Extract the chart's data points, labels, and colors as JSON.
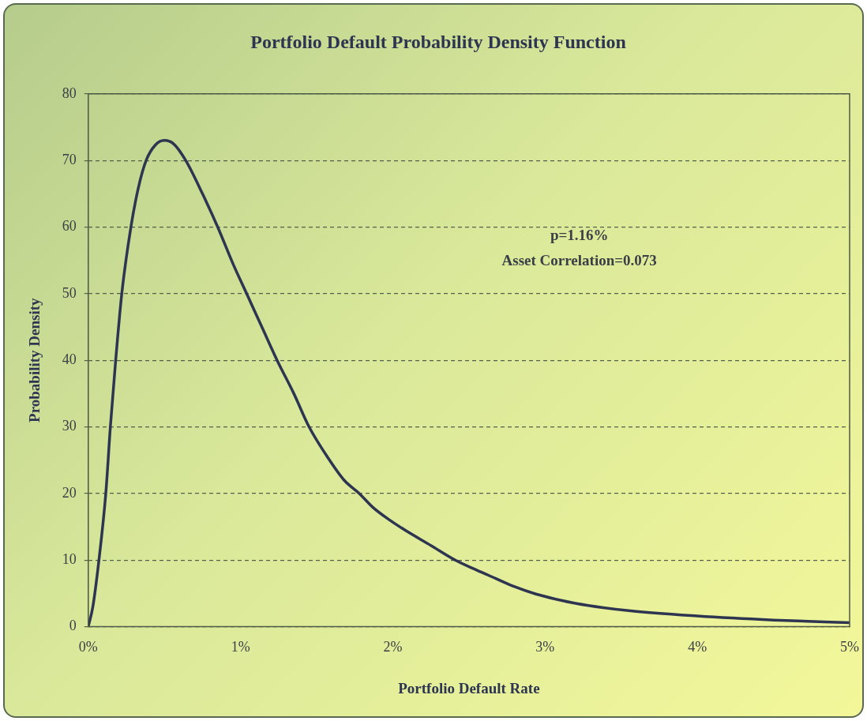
{
  "chart_data": {
    "type": "line",
    "title": "Portfolio Default Probability Density Function",
    "xlabel": "Portfolio Default Rate",
    "ylabel": "Probability Density",
    "annotations": [
      "p=1.16%",
      "Asset Correlation=0.073"
    ],
    "x": [
      0,
      0.03,
      0.07,
      0.115,
      0.145,
      0.18,
      0.22,
      0.28,
      0.33,
      0.38,
      0.44,
      0.5,
      0.56,
      0.64,
      0.75,
      0.85,
      0.95,
      1.04,
      1.14,
      1.24,
      1.35,
      1.45,
      1.57,
      1.68,
      1.78,
      1.87,
      1.98,
      2.08,
      2.25,
      2.41,
      2.55,
      2.68,
      2.8,
      2.94,
      3.2,
      3.55,
      4,
      4.5,
      5
    ],
    "series": [
      {
        "color": "#2e3550",
        "values": [
          0,
          3,
          10,
          20,
          30,
          40,
          50,
          60,
          66,
          70,
          72.3,
          73,
          72.5,
          70,
          65,
          60,
          54.5,
          50,
          45,
          40,
          35,
          30,
          25.5,
          22,
          20,
          17.9,
          16,
          14.5,
          12.2,
          10,
          8.5,
          7.2,
          6,
          4.9,
          3.5,
          2.4,
          1.6,
          1,
          0.6
        ]
      }
    ],
    "xlim": [
      0,
      5
    ],
    "xticks": [
      {
        "value": 0,
        "label": "0%"
      },
      {
        "value": 1,
        "label": "1%"
      },
      {
        "value": 2,
        "label": "2%"
      },
      {
        "value": 3,
        "label": "3%"
      },
      {
        "value": 4,
        "label": "4%"
      },
      {
        "value": 5,
        "label": "5%"
      }
    ],
    "ylim": [
      0,
      80
    ],
    "yticks": [
      0,
      10,
      20,
      30,
      40,
      50,
      60,
      70,
      80
    ],
    "grid": "y",
    "legend": false,
    "marker": "none",
    "line_style": "solid"
  }
}
